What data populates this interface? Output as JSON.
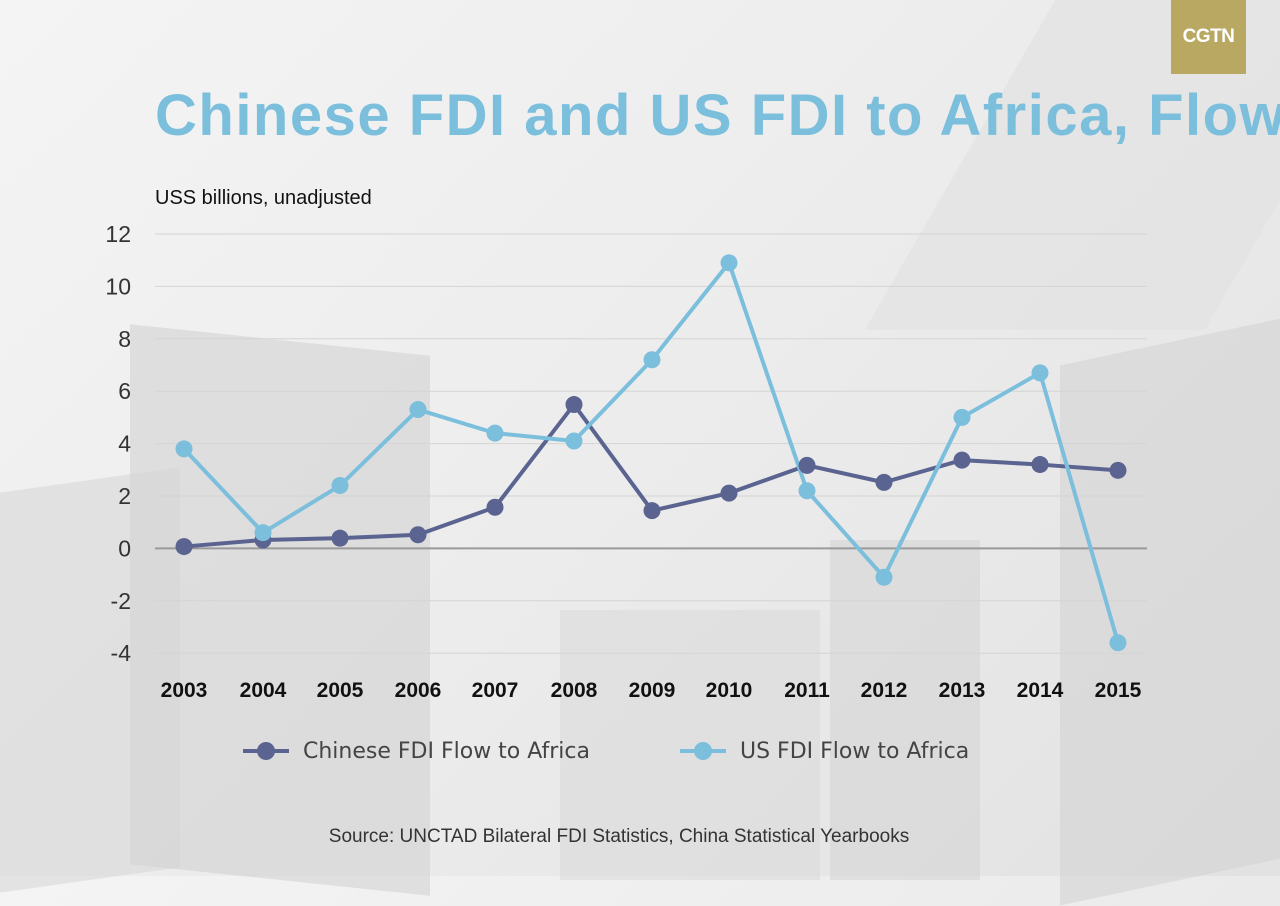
{
  "logo": "CGTN",
  "colors": {
    "chinese": "#5b6491",
    "us": "#7bbfdc",
    "title": "#7bbfdc",
    "logo_bg": "#b9a862"
  },
  "chart_data": {
    "type": "line",
    "title": "Chinese FDI and US FDI to Africa, Flow",
    "ylabel": "USS billions, unadjusted",
    "xlabel": "",
    "categories": [
      "2003",
      "2004",
      "2005",
      "2006",
      "2007",
      "2008",
      "2009",
      "2010",
      "2011",
      "2012",
      "2013",
      "2014",
      "2015"
    ],
    "yticks": [
      12,
      10,
      8,
      6,
      4,
      2,
      0,
      -2,
      -4
    ],
    "ylim": [
      -4.8,
      12
    ],
    "grid": true,
    "legend_position": "bottom",
    "series": [
      {
        "name": "Chinese FDI Flow to Africa",
        "color": "#5b6491",
        "values": [
          0.07,
          0.32,
          0.39,
          0.52,
          1.57,
          5.49,
          1.44,
          2.11,
          3.17,
          2.52,
          3.37,
          3.2,
          2.98
        ]
      },
      {
        "name": "US FDI Flow to Africa",
        "color": "#7bbfdc",
        "values": [
          3.8,
          0.6,
          2.4,
          5.3,
          4.4,
          4.1,
          7.2,
          10.9,
          2.2,
          -1.1,
          5.0,
          6.7,
          -3.6
        ]
      }
    ],
    "source": "Source: UNCTAD Bilateral FDI Statistics, China Statistical Yearbooks"
  }
}
